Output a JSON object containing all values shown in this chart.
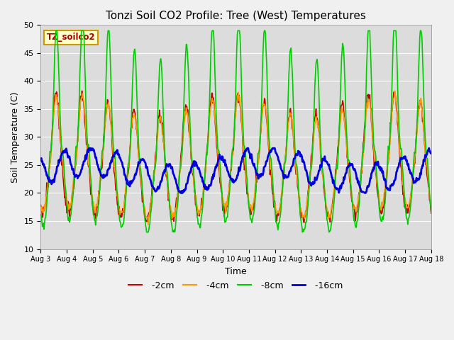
{
  "title": "Tonzi Soil CO2 Profile: Tree (West) Temperatures",
  "xlabel": "Time",
  "ylabel": "Soil Temperature (C)",
  "ylim": [
    10,
    50
  ],
  "xlim_days": [
    0,
    15
  ],
  "plot_bg": "#dcdcdc",
  "fig_bg": "#f0f0f0",
  "legend_label": "TZ_soilco2",
  "series": {
    "-2cm": {
      "color": "#cc0000",
      "lw": 1.2,
      "ls": "-"
    },
    "-4cm": {
      "color": "#ff9900",
      "lw": 1.2,
      "ls": "-"
    },
    "-8cm": {
      "color": "#00cc00",
      "lw": 1.2,
      "ls": "-"
    },
    "-16cm": {
      "color": "#0000dd",
      "lw": 2.0,
      "ls": "-"
    }
  },
  "xtick_labels": [
    "Aug 3",
    "Aug 4",
    "Aug 5",
    "Aug 6",
    "Aug 7",
    "Aug 8",
    "Aug 9",
    "Aug 10",
    "Aug 11",
    "Aug 12",
    "Aug 13",
    "Aug 14",
    "Aug 15",
    "Aug 16",
    "Aug 17",
    "Aug 18"
  ],
  "xtick_positions": [
    0,
    1,
    2,
    3,
    4,
    5,
    6,
    7,
    8,
    9,
    10,
    11,
    12,
    13,
    14,
    15
  ],
  "ytick_positions": [
    10,
    15,
    20,
    25,
    30,
    35,
    40,
    45,
    50
  ]
}
